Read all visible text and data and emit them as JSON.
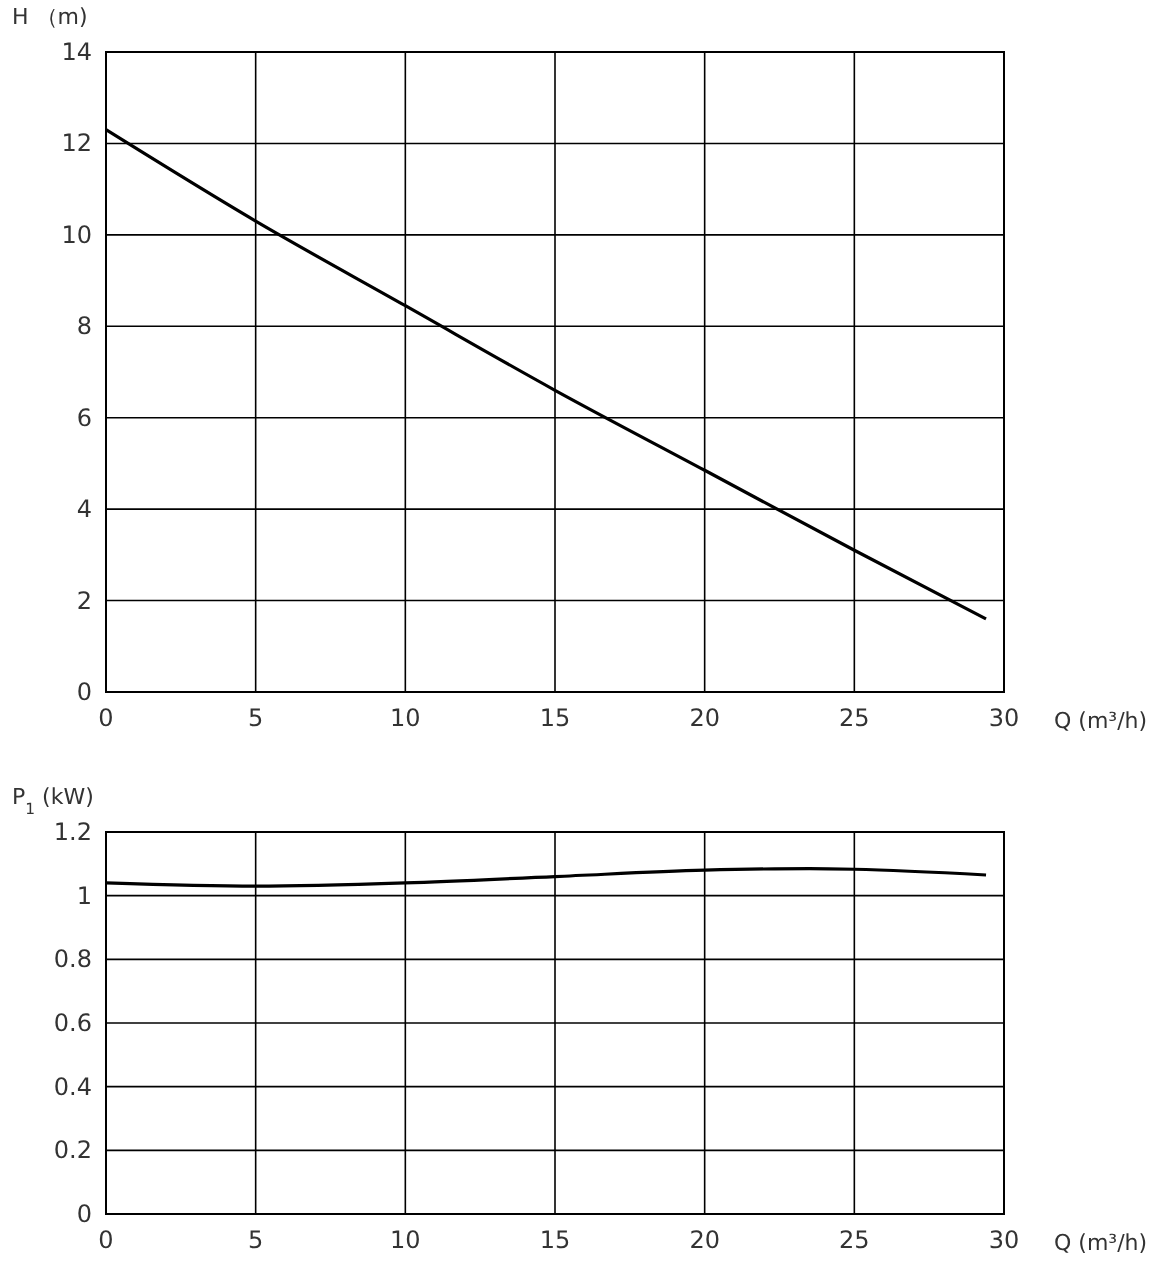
{
  "chart_data": [
    {
      "type": "line",
      "ylabel": "H （m)",
      "xlabel": "Q (m³/h)",
      "xlim": [
        0,
        30
      ],
      "ylim": [
        0,
        14
      ],
      "xticks": [
        0,
        5,
        10,
        15,
        20,
        25,
        30
      ],
      "yticks": [
        0,
        2,
        4,
        6,
        8,
        10,
        12,
        14
      ],
      "grid": true,
      "series": [
        {
          "color": "#000000",
          "x": [
            0,
            5,
            10,
            15,
            20,
            25,
            29.4
          ],
          "values": [
            12.3,
            10.3,
            8.45,
            6.6,
            4.85,
            3.1,
            1.6
          ]
        }
      ]
    },
    {
      "type": "line",
      "ylabel": "P$_{1}$ (kW)",
      "xlabel": "Q (m³/h)",
      "xlim": [
        0,
        30
      ],
      "ylim": [
        0,
        1.2
      ],
      "xticks": [
        0,
        5,
        10,
        15,
        20,
        25,
        30
      ],
      "yticks": [
        0,
        0.2,
        0.4,
        0.6,
        0.8,
        1,
        1.2
      ],
      "grid": true,
      "series": [
        {
          "color": "#000000",
          "x": [
            0,
            5,
            10,
            15,
            20,
            23.5,
            25,
            29.4
          ],
          "values": [
            1.04,
            1.03,
            1.04,
            1.06,
            1.08,
            1.085,
            1.083,
            1.065
          ]
        }
      ]
    }
  ]
}
